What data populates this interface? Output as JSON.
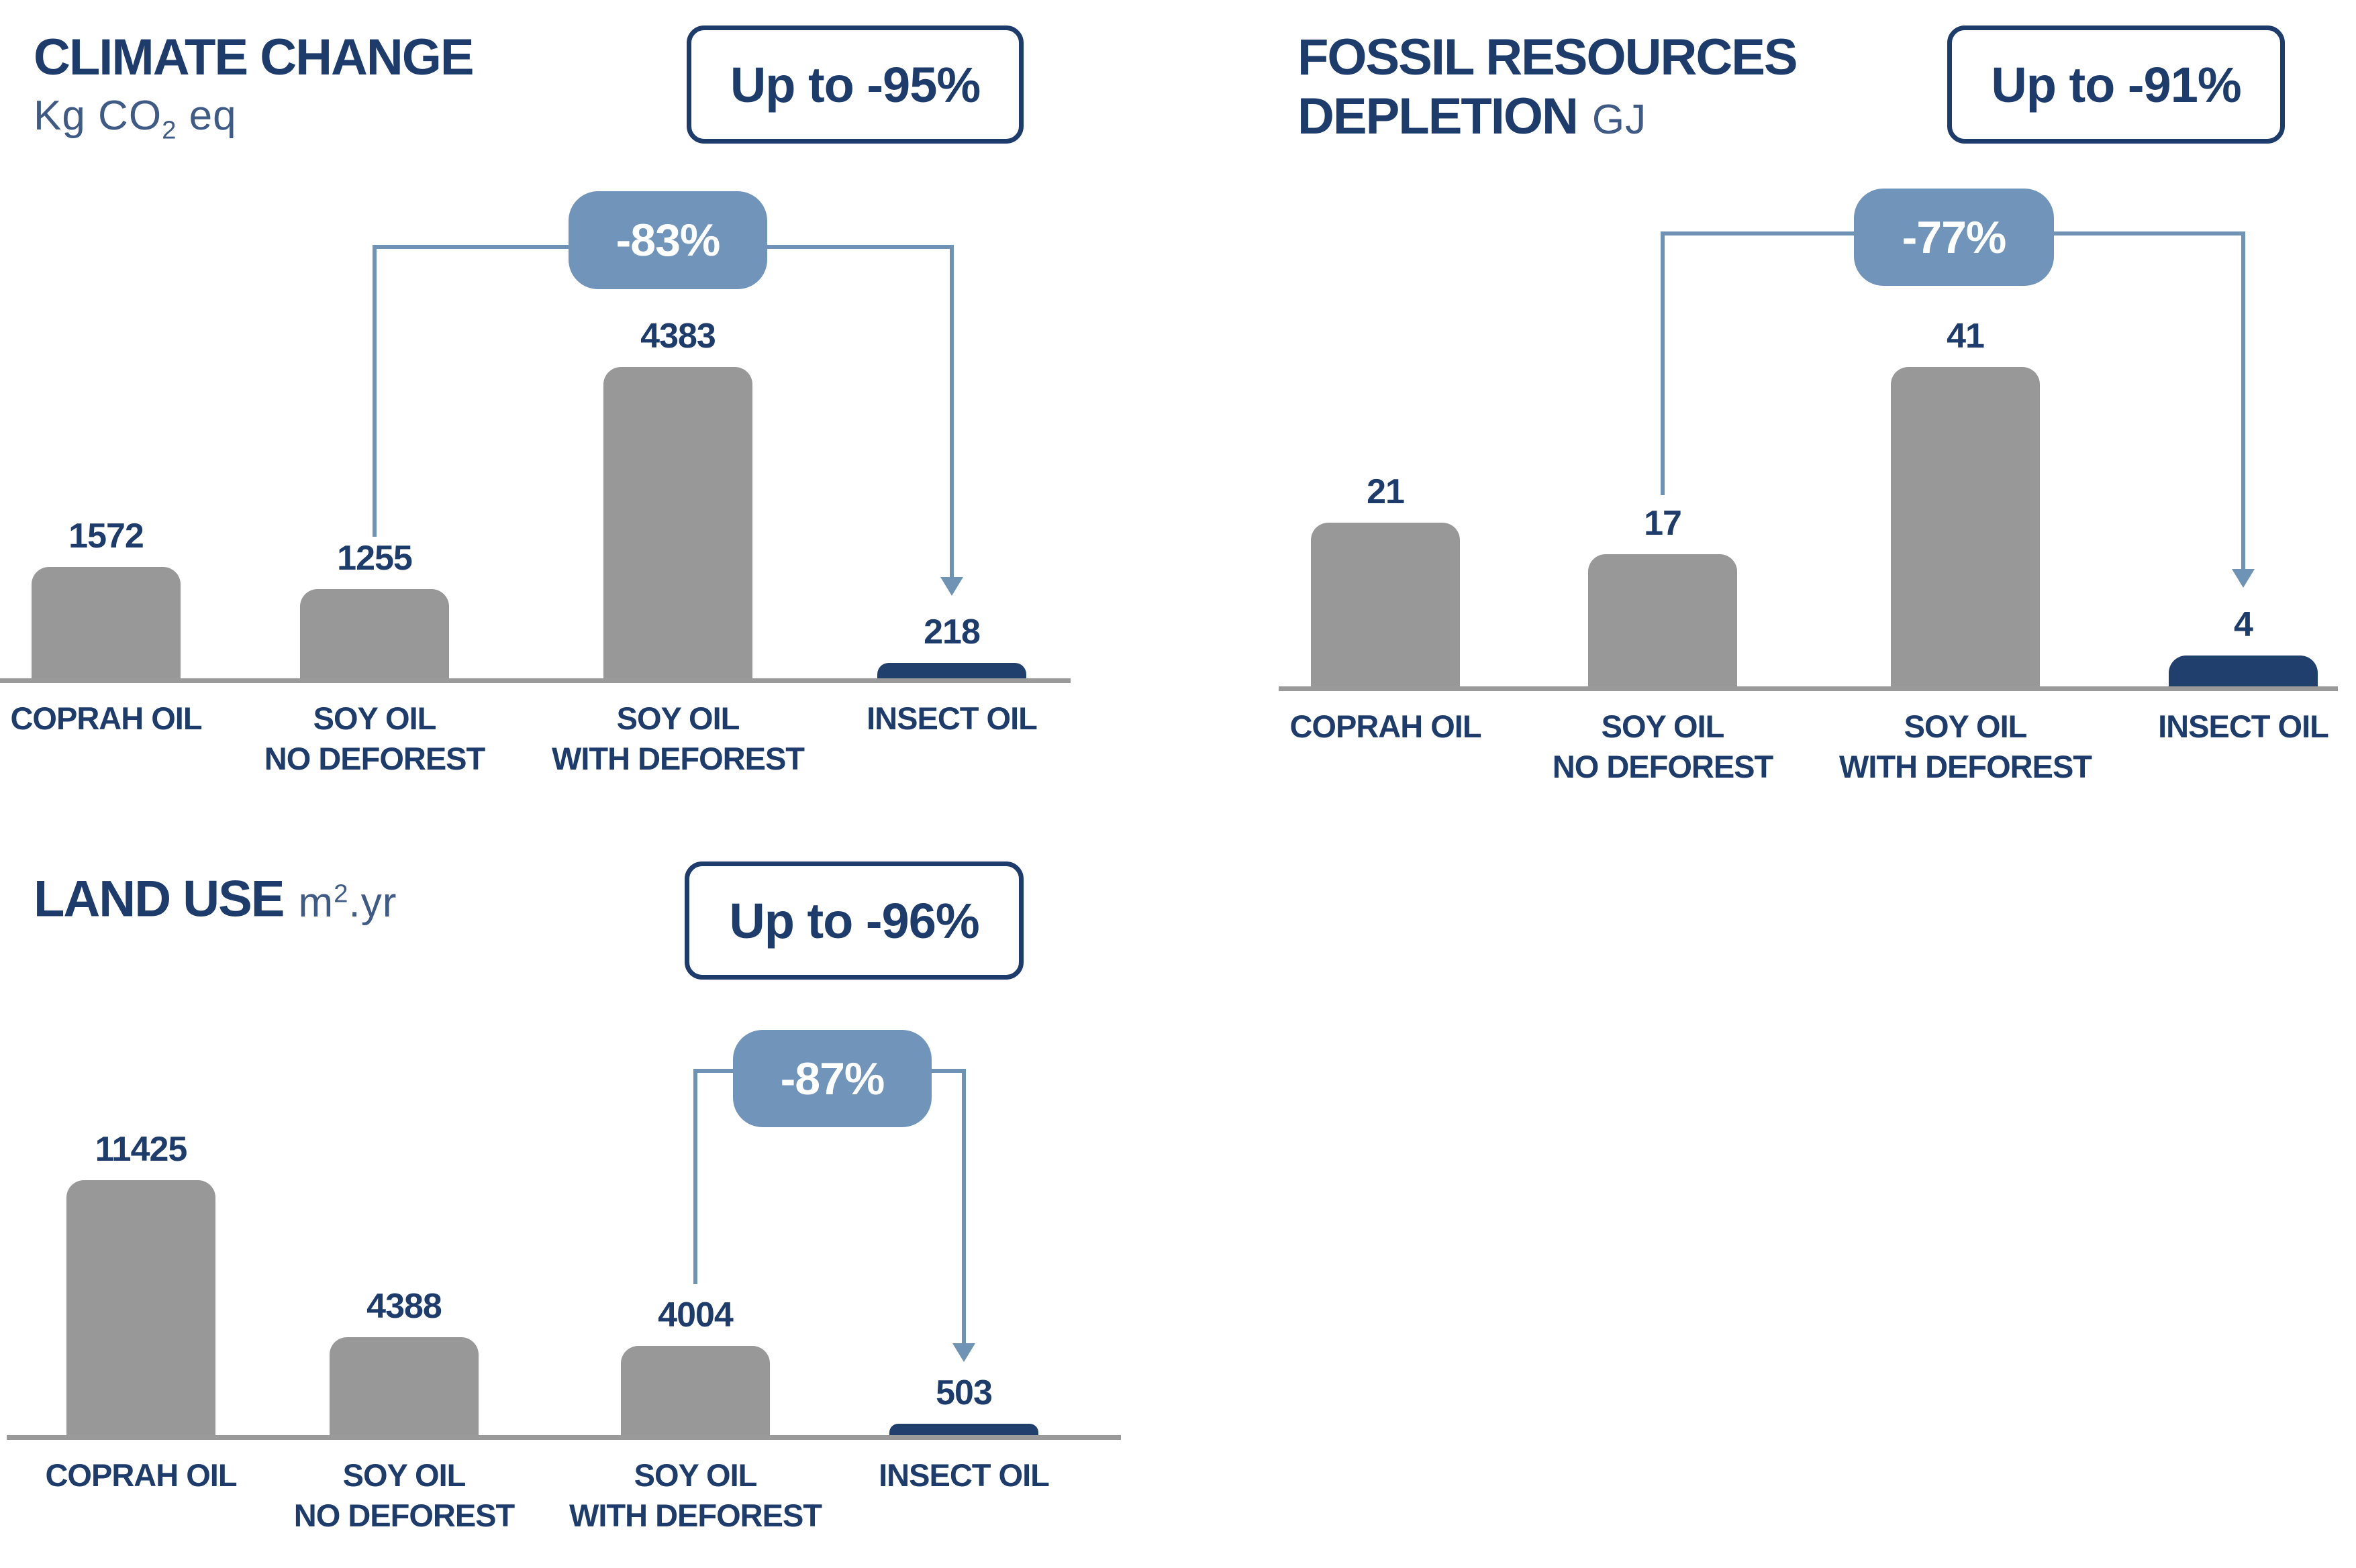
{
  "page": {
    "background": "#ffffff",
    "description": "Environmental impact comparison of oils infographic"
  },
  "colors": {
    "navy": "#1d3c6b",
    "unit_blue": "#3e5a85",
    "bar_gray": "#989898",
    "bar_navy": "#203f6c",
    "bubble_blue": "#7195ba",
    "connector_blue": "#6e93b5",
    "axis_gray": "#9a9a9a",
    "white": "#ffffff"
  },
  "chart_data": [
    {
      "id": "climate-change",
      "type": "bar",
      "title_lines": [
        "CLIMATE CHANGE"
      ],
      "unit_position": "below",
      "unit": {
        "pre": "Kg CO",
        "sub": "2",
        "post": " eq"
      },
      "badge_label": "Up to -95%",
      "bubble_label": "-83%",
      "categories": [
        [
          "COPRAH OIL"
        ],
        [
          "SOY OIL",
          "NO DEFOREST"
        ],
        [
          "SOY OIL",
          "WITH DEFOREST"
        ],
        [
          "INSECT OIL"
        ]
      ],
      "values": [
        1572,
        1255,
        4383,
        218
      ],
      "value_labels": [
        "1572",
        "1255",
        "4383",
        "218"
      ],
      "highlight_index": 3,
      "bracket": {
        "from_index": 1,
        "to_index": 3
      },
      "ylim": [
        0,
        4383
      ],
      "legend": "none",
      "grid": false
    },
    {
      "id": "fossil-resources-depletion",
      "type": "bar",
      "title_lines": [
        "FOSSIL RESOURCES",
        "DEPLETION"
      ],
      "unit_position": "inline",
      "unit": {
        "pre": "GJ"
      },
      "badge_label": "Up to -91%",
      "bubble_label": "-77%",
      "categories": [
        [
          "COPRAH OIL"
        ],
        [
          "SOY OIL",
          "NO DEFOREST"
        ],
        [
          "SOY OIL",
          "WITH DEFOREST"
        ],
        [
          "INSECT OIL"
        ]
      ],
      "values": [
        21,
        17,
        41,
        4
      ],
      "value_labels": [
        "21",
        "17",
        "41",
        "4"
      ],
      "highlight_index": 3,
      "bracket": {
        "from_index": 1,
        "to_index": 3
      },
      "ylim": [
        0,
        41
      ],
      "legend": "none",
      "grid": false
    },
    {
      "id": "land-use",
      "type": "bar",
      "title_lines": [
        "LAND USE"
      ],
      "unit_position": "inline",
      "unit": {
        "pre": "m",
        "sup": "2",
        "post": ".yr"
      },
      "badge_label": "Up to -96%",
      "bubble_label": "-87%",
      "categories": [
        [
          "COPRAH OIL"
        ],
        [
          "SOY OIL",
          "NO DEFOREST"
        ],
        [
          "SOY OIL",
          "WITH DEFOREST"
        ],
        [
          "INSECT OIL"
        ]
      ],
      "values": [
        11425,
        4388,
        4004,
        503
      ],
      "value_labels": [
        "11425",
        "4388",
        "4004",
        "503"
      ],
      "highlight_index": 3,
      "bracket": {
        "from_index": 2,
        "to_index": 3
      },
      "ylim": [
        0,
        11425
      ],
      "legend": "none",
      "grid": false
    }
  ]
}
